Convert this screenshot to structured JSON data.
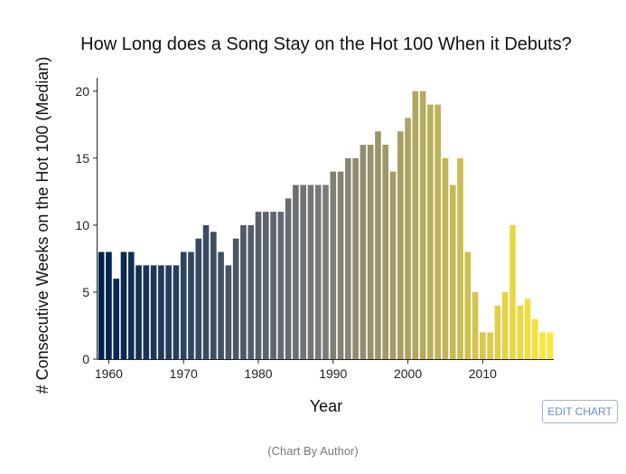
{
  "chart_data": {
    "type": "bar",
    "title": "How Long does a Song Stay on the Hot 100 When it Debuts?",
    "xlabel": "Year",
    "ylabel": "# Consecutive Weeks on the Hot 100 (Median)",
    "x": [
      1959,
      1960,
      1961,
      1962,
      1963,
      1964,
      1965,
      1966,
      1967,
      1968,
      1969,
      1970,
      1971,
      1972,
      1973,
      1974,
      1975,
      1976,
      1977,
      1978,
      1979,
      1980,
      1981,
      1982,
      1983,
      1984,
      1985,
      1986,
      1987,
      1988,
      1989,
      1990,
      1991,
      1992,
      1993,
      1994,
      1995,
      1996,
      1997,
      1998,
      1999,
      2000,
      2001,
      2002,
      2003,
      2004,
      2005,
      2006,
      2007,
      2008,
      2009,
      2010,
      2011,
      2012,
      2013,
      2014,
      2015,
      2016,
      2017,
      2018,
      2019
    ],
    "values": [
      8,
      8,
      6,
      8,
      8,
      7,
      7,
      7,
      7,
      7,
      7,
      8,
      8,
      9,
      10,
      9.5,
      8,
      7,
      9,
      10,
      10,
      11,
      11,
      11,
      11,
      12,
      13,
      13,
      13,
      13,
      13,
      14,
      14,
      15,
      15,
      16,
      16,
      17,
      16,
      14,
      17,
      18,
      20,
      20,
      19,
      19,
      15,
      13,
      15,
      8,
      5,
      2,
      2,
      4,
      5,
      10,
      4,
      4.5,
      3,
      2,
      2
    ],
    "xlim": [
      1958.5,
      2019.5
    ],
    "ylim": [
      0,
      21
    ],
    "xticks": [
      1960,
      1970,
      1980,
      1990,
      2000,
      2010
    ],
    "yticks": [
      0,
      5,
      10,
      15,
      20
    ],
    "colorscale": [
      "#00224e",
      "#7c7b78",
      "#fee838"
    ],
    "grid": false,
    "legend": "none"
  },
  "ui": {
    "edit_button_label": "EDIT CHART",
    "credit": "(Chart By Author)"
  }
}
